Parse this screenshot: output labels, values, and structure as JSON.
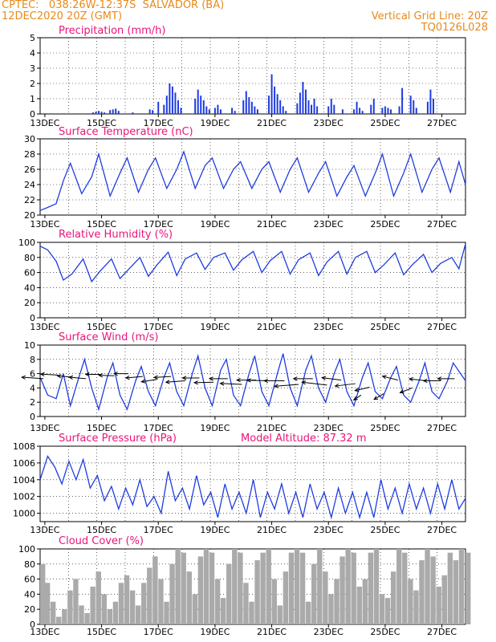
{
  "header": {
    "line1": "CPTEC:   038:26W-12:37S  SALVADOR (BA)",
    "line2": "12DEC2020 20Z (GMT)",
    "grid_note": "Vertical Grid Line: 20Z",
    "code": "TQ0126L028"
  },
  "colors": {
    "header": "#e88a1a",
    "title": "#e8157a",
    "series": "#1f3ce0",
    "cloud": "#aaaaaa",
    "axis": "#000000"
  },
  "chart_data": [
    {
      "type": "bar",
      "title": "Precipitation (mm/h)",
      "ylim": [
        0,
        5
      ],
      "yticks": [
        0,
        1,
        2,
        3,
        4,
        5
      ],
      "xlim": [
        12.833,
        27.833
      ],
      "xticks": [
        "13DEC",
        "15DEC",
        "17DEC",
        "19DEC",
        "21DEC",
        "23DEC",
        "25DEC",
        "27DEC"
      ],
      "series": [
        {
          "x": [
            14.7,
            14.8,
            14.9,
            15.0,
            15.1,
            15.3,
            15.4,
            15.5,
            15.6,
            16.1,
            16.7,
            16.8,
            17.0,
            17.2,
            17.3,
            17.4,
            17.5,
            17.6,
            17.7,
            17.8,
            18.3,
            18.4,
            18.5,
            18.6,
            18.7,
            18.8,
            19.0,
            19.1,
            19.2,
            19.6,
            19.7,
            20.0,
            20.1,
            20.2,
            20.3,
            20.4,
            20.5,
            20.9,
            21.0,
            21.1,
            21.2,
            21.3,
            21.4,
            21.5,
            21.9,
            22.0,
            22.1,
            22.2,
            22.3,
            22.4,
            22.5,
            22.6,
            23.0,
            23.1,
            23.2,
            23.5,
            23.9,
            24.0,
            24.1,
            24.2,
            24.5,
            24.6,
            24.9,
            25.0,
            25.1,
            25.2,
            25.5,
            25.6,
            25.9,
            26.0,
            26.1,
            26.5,
            26.6,
            26.7
          ],
          "values": [
            0.1,
            0.15,
            0.2,
            0.15,
            0.1,
            0.25,
            0.3,
            0.35,
            0.2,
            0.1,
            0.3,
            0.25,
            0.8,
            0.6,
            1.2,
            2.0,
            1.8,
            1.4,
            0.9,
            0.4,
            1.0,
            1.6,
            1.2,
            0.9,
            0.5,
            0.3,
            0.4,
            0.6,
            0.3,
            0.4,
            0.2,
            0.9,
            1.5,
            1.1,
            0.8,
            0.5,
            0.3,
            1.2,
            2.6,
            1.8,
            1.3,
            0.9,
            0.5,
            0.2,
            0.7,
            1.4,
            2.1,
            1.6,
            0.9,
            0.6,
            1.0,
            0.5,
            0.5,
            1.0,
            0.6,
            0.3,
            0.3,
            0.8,
            0.4,
            0.2,
            0.6,
            1.0,
            0.4,
            0.5,
            0.4,
            0.3,
            0.5,
            1.7,
            1.2,
            0.9,
            0.4,
            0.8,
            1.6,
            1.0
          ]
        }
      ]
    },
    {
      "type": "line",
      "title": "Surface Temperature (nC)",
      "ylim": [
        20,
        30
      ],
      "yticks": [
        20,
        22,
        24,
        26,
        28,
        30
      ],
      "xlim": [
        12.833,
        27.833
      ],
      "xticks": [
        "13DEC",
        "15DEC",
        "17DEC",
        "19DEC",
        "21DEC",
        "23DEC",
        "25DEC",
        "27DEC"
      ],
      "series": [
        {
          "x": [
            12.833,
            13.1,
            13.4,
            13.65,
            13.9,
            14.3,
            14.65,
            14.9,
            15.3,
            15.65,
            15.9,
            16.3,
            16.65,
            16.9,
            17.3,
            17.65,
            17.9,
            18.3,
            18.65,
            18.9,
            19.3,
            19.65,
            19.9,
            20.3,
            20.65,
            20.9,
            21.3,
            21.65,
            21.9,
            22.3,
            22.65,
            22.9,
            23.3,
            23.65,
            23.9,
            24.3,
            24.65,
            24.9,
            25.3,
            25.65,
            25.9,
            26.3,
            26.65,
            26.9,
            27.3,
            27.6,
            27.833
          ],
          "values": [
            20.6,
            21.0,
            21.5,
            24.5,
            26.8,
            22.8,
            25.0,
            28.0,
            22.5,
            25.5,
            27.5,
            23.0,
            26.0,
            27.5,
            23.5,
            26.0,
            28.3,
            23.5,
            26.5,
            27.5,
            23.5,
            26.0,
            27.0,
            23.5,
            26.0,
            27.0,
            23.0,
            26.0,
            27.5,
            23.0,
            25.5,
            27.0,
            22.5,
            25.0,
            26.5,
            22.5,
            25.5,
            28.0,
            22.5,
            25.5,
            28.0,
            23.0,
            26.0,
            27.5,
            23.0,
            27.0,
            24.0
          ]
        }
      ]
    },
    {
      "type": "line",
      "title": "Relative Humidity (%)",
      "ylim": [
        0,
        100
      ],
      "yticks": [
        0,
        20,
        40,
        60,
        80,
        100
      ],
      "xlim": [
        12.833,
        27.833
      ],
      "xticks": [
        "13DEC",
        "15DEC",
        "17DEC",
        "19DEC",
        "21DEC",
        "23DEC",
        "25DEC",
        "27DEC"
      ],
      "series": [
        {
          "x": [
            12.833,
            13.1,
            13.4,
            13.65,
            13.95,
            14.35,
            14.65,
            14.95,
            15.35,
            15.65,
            15.95,
            16.35,
            16.65,
            16.95,
            17.35,
            17.65,
            17.95,
            18.35,
            18.65,
            18.95,
            19.35,
            19.65,
            19.95,
            20.35,
            20.65,
            20.95,
            21.35,
            21.65,
            21.95,
            22.35,
            22.65,
            22.95,
            23.35,
            23.65,
            23.95,
            24.35,
            24.65,
            24.95,
            25.35,
            25.65,
            25.95,
            26.35,
            26.65,
            26.95,
            27.35,
            27.6,
            27.833
          ],
          "values": [
            95,
            90,
            75,
            50,
            58,
            78,
            48,
            62,
            78,
            52,
            64,
            80,
            55,
            70,
            87,
            56,
            78,
            86,
            64,
            80,
            86,
            63,
            77,
            88,
            60,
            76,
            88,
            58,
            77,
            86,
            56,
            74,
            88,
            58,
            80,
            88,
            60,
            70,
            86,
            57,
            70,
            84,
            60,
            72,
            80,
            65,
            98
          ]
        }
      ]
    },
    {
      "type": "line",
      "title": "Surface Wind (m/s)",
      "ylim": [
        0,
        10
      ],
      "yticks": [
        0,
        2,
        4,
        6,
        8,
        10
      ],
      "xlim": [
        12.833,
        27.833
      ],
      "xticks": [
        "13DEC",
        "15DEC",
        "17DEC",
        "19DEC",
        "21DEC",
        "23DEC",
        "25DEC",
        "27DEC"
      ],
      "series": [
        {
          "x": [
            12.833,
            13.1,
            13.4,
            13.65,
            13.9,
            14.2,
            14.4,
            14.65,
            14.9,
            15.2,
            15.4,
            15.65,
            15.9,
            16.2,
            16.4,
            16.65,
            16.9,
            17.2,
            17.4,
            17.65,
            17.9,
            18.2,
            18.4,
            18.65,
            18.9,
            19.2,
            19.4,
            19.65,
            19.9,
            20.2,
            20.4,
            20.65,
            20.9,
            21.2,
            21.4,
            21.65,
            21.9,
            22.2,
            22.4,
            22.65,
            22.9,
            23.2,
            23.4,
            23.65,
            23.9,
            24.2,
            24.4,
            24.65,
            24.9,
            25.2,
            25.4,
            25.65,
            25.9,
            26.2,
            26.4,
            26.65,
            26.9,
            27.2,
            27.4,
            27.833
          ],
          "values": [
            5.5,
            3.0,
            2.5,
            6.0,
            1.5,
            5.5,
            8.0,
            4.0,
            1.0,
            5.5,
            7.5,
            3.0,
            1.0,
            5.0,
            7.0,
            3.5,
            1.5,
            5.5,
            7.5,
            3.5,
            1.5,
            6.0,
            8.5,
            4.0,
            1.5,
            6.5,
            8.0,
            3.0,
            1.5,
            6.0,
            8.5,
            3.5,
            1.5,
            6.0,
            8.8,
            4.0,
            1.5,
            6.5,
            8.5,
            4.0,
            2.0,
            6.0,
            8.0,
            3.5,
            1.5,
            5.5,
            7.5,
            3.5,
            2.5,
            5.5,
            7.0,
            3.0,
            2.0,
            5.0,
            7.5,
            3.5,
            2.5,
            5.0,
            7.5,
            5.0
          ]
        }
      ]
    },
    {
      "type": "line",
      "title": "Surface Pressure (hPa)",
      "annotation": "Model Altitude: 87.32 m",
      "ylim": [
        999,
        1008
      ],
      "yticks": [
        1000,
        1002,
        1004,
        1006,
        1008
      ],
      "xlim": [
        12.833,
        27.833
      ],
      "xticks": [
        "13DEC",
        "15DEC",
        "17DEC",
        "19DEC",
        "21DEC",
        "23DEC",
        "25DEC",
        "27DEC"
      ],
      "series": [
        {
          "x": [
            12.833,
            13.1,
            13.35,
            13.6,
            13.85,
            14.1,
            14.35,
            14.6,
            14.85,
            15.1,
            15.35,
            15.6,
            15.85,
            16.1,
            16.35,
            16.6,
            16.85,
            17.1,
            17.35,
            17.6,
            17.85,
            18.1,
            18.35,
            18.6,
            18.85,
            19.1,
            19.35,
            19.6,
            19.85,
            20.1,
            20.35,
            20.6,
            20.85,
            21.1,
            21.35,
            21.6,
            21.85,
            22.1,
            22.35,
            22.6,
            22.85,
            23.1,
            23.35,
            23.6,
            23.85,
            24.1,
            24.35,
            24.6,
            24.85,
            25.1,
            25.35,
            25.6,
            25.85,
            26.1,
            26.35,
            26.6,
            26.85,
            27.1,
            27.35,
            27.6,
            27.833
          ],
          "values": [
            1004.0,
            1006.8,
            1005.5,
            1003.5,
            1006.2,
            1004.0,
            1006.4,
            1003.0,
            1004.5,
            1001.5,
            1003.2,
            1000.5,
            1003.0,
            1001.0,
            1004.0,
            1000.8,
            1002.0,
            1000.0,
            1005.0,
            1001.5,
            1003.0,
            1000.5,
            1004.5,
            1001.0,
            1002.5,
            999.5,
            1003.5,
            1000.5,
            1002.5,
            1000.0,
            1004.0,
            999.5,
            1002.5,
            1000.5,
            1003.5,
            1000.0,
            1002.5,
            999.5,
            1003.5,
            1000.5,
            1002.5,
            999.5,
            1003.0,
            1000.0,
            1002.5,
            999.5,
            1002.5,
            999.5,
            1004.0,
            1000.5,
            1003.0,
            1000.0,
            1003.5,
            1000.5,
            1003.0,
            1000.0,
            1003.5,
            1000.5,
            1004.0,
            1000.5,
            1001.8
          ]
        }
      ]
    },
    {
      "type": "bar",
      "title": "Cloud Cover (%)",
      "ylim": [
        0,
        100
      ],
      "yticks": [
        0,
        20,
        40,
        60,
        80,
        100
      ],
      "xlim": [
        12.833,
        27.833
      ],
      "xticks": [
        "13DEC",
        "15DEC",
        "17DEC",
        "19DEC",
        "21DEC",
        "23DEC",
        "25DEC",
        "27DEC"
      ],
      "series": [
        {
          "x": [
            12.833,
            13.0,
            13.2,
            13.4,
            13.6,
            13.8,
            14.0,
            14.2,
            14.4,
            14.6,
            14.8,
            15.0,
            15.2,
            15.4,
            15.6,
            15.8,
            16.0,
            16.2,
            16.4,
            16.6,
            16.8,
            17.0,
            17.2,
            17.4,
            17.6,
            17.8,
            18.0,
            18.2,
            18.4,
            18.6,
            18.8,
            19.0,
            19.2,
            19.4,
            19.6,
            19.8,
            20.0,
            20.2,
            20.4,
            20.6,
            20.8,
            21.0,
            21.2,
            21.4,
            21.6,
            21.8,
            22.0,
            22.2,
            22.4,
            22.6,
            22.8,
            23.0,
            23.2,
            23.4,
            23.6,
            23.8,
            24.0,
            24.2,
            24.4,
            24.6,
            24.8,
            25.0,
            25.2,
            25.4,
            25.6,
            25.8,
            26.0,
            26.2,
            26.4,
            26.6,
            26.8,
            27.0,
            27.2,
            27.4,
            27.6,
            27.833
          ],
          "values": [
            80,
            55,
            30,
            10,
            20,
            45,
            60,
            25,
            15,
            50,
            70,
            40,
            20,
            30,
            55,
            65,
            45,
            25,
            55,
            75,
            90,
            60,
            30,
            80,
            100,
            95,
            70,
            40,
            90,
            100,
            95,
            60,
            35,
            80,
            100,
            95,
            55,
            30,
            85,
            95,
            100,
            60,
            25,
            70,
            95,
            100,
            95,
            30,
            80,
            100,
            70,
            40,
            60,
            90,
            100,
            95,
            50,
            60,
            95,
            100,
            40,
            35,
            70,
            100,
            95,
            60,
            45,
            85,
            100,
            90,
            50,
            65,
            95,
            85,
            100,
            95
          ]
        }
      ]
    }
  ],
  "wind_vectors": {
    "x": [
      12.95,
      13.45,
      13.95,
      14.45,
      14.95,
      15.45,
      15.95,
      16.45,
      16.95,
      17.45,
      17.95,
      18.45,
      18.95,
      19.45,
      19.95,
      20.45,
      20.95,
      21.45,
      21.95,
      22.45,
      22.95,
      23.45,
      23.95,
      24.15,
      24.45,
      24.95,
      25.45,
      25.95,
      26.45,
      26.95,
      27.45
    ],
    "y": [
      5.3,
      5.8,
      5.5,
      5.3,
      5.9,
      5.7,
      6.0,
      5.6,
      5.2,
      5.6,
      5.0,
      5.4,
      4.8,
      5.3,
      4.5,
      5.1,
      5.0,
      5.0,
      4.5,
      5.3,
      4.4,
      5.1,
      4.6,
      3.0,
      4.1,
      3.2,
      5.1,
      4.0,
      5.0,
      5.0,
      5.3
    ],
    "u": [
      -4.5,
      -3.5,
      -3.0,
      -3.5,
      -3.0,
      -3.2,
      -3.0,
      -3.5,
      -3.2,
      -3.5,
      -4.0,
      -3.5,
      -4.0,
      -3.8,
      -4.5,
      -4.0,
      -4.8,
      -4.2,
      -5.0,
      -4.0,
      -5.2,
      -4.0,
      -4.2,
      -1.5,
      -3.0,
      -2.0,
      -3.2,
      -2.5,
      -3.5,
      -3.5,
      -3.5
    ],
    "v": [
      0.3,
      0.2,
      0.3,
      0.3,
      0.0,
      0.1,
      0.0,
      -0.3,
      -0.5,
      -0.2,
      -0.3,
      0.0,
      -0.1,
      0.0,
      0.2,
      0.0,
      0.1,
      0.0,
      -0.4,
      0.0,
      0.6,
      0.5,
      -0.5,
      -1.0,
      -0.7,
      -1.2,
      0.8,
      -1.0,
      0.4,
      0.0,
      0.0
    ]
  }
}
